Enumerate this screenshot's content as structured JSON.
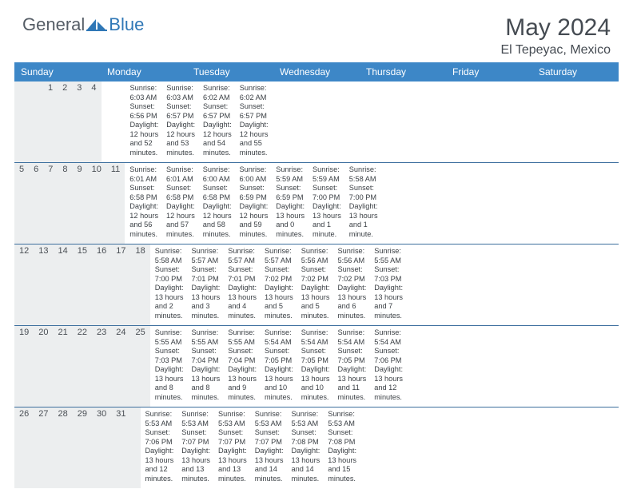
{
  "logo": {
    "part1": "General",
    "part2": "Blue"
  },
  "title": "May 2024",
  "location": "El Tepeyac, Mexico",
  "colors": {
    "header_bg": "#3d87c7",
    "header_text": "#ffffff",
    "numrow_bg": "#eceeef",
    "border": "#3d6f9e",
    "body_text": "#3a3f44",
    "title_text": "#454b52",
    "logo_gray": "#555d66",
    "logo_blue": "#2f77b6"
  },
  "day_names": [
    "Sunday",
    "Monday",
    "Tuesday",
    "Wednesday",
    "Thursday",
    "Friday",
    "Saturday"
  ],
  "weeks": [
    {
      "nums": [
        "",
        "",
        "",
        "1",
        "2",
        "3",
        "4"
      ],
      "cells": [
        "",
        "",
        "",
        "Sunrise: 6:03 AM\nSunset: 6:56 PM\nDaylight: 12 hours and 52 minutes.",
        "Sunrise: 6:03 AM\nSunset: 6:57 PM\nDaylight: 12 hours and 53 minutes.",
        "Sunrise: 6:02 AM\nSunset: 6:57 PM\nDaylight: 12 hours and 54 minutes.",
        "Sunrise: 6:02 AM\nSunset: 6:57 PM\nDaylight: 12 hours and 55 minutes."
      ]
    },
    {
      "nums": [
        "5",
        "6",
        "7",
        "8",
        "9",
        "10",
        "11"
      ],
      "cells": [
        "Sunrise: 6:01 AM\nSunset: 6:58 PM\nDaylight: 12 hours and 56 minutes.",
        "Sunrise: 6:01 AM\nSunset: 6:58 PM\nDaylight: 12 hours and 57 minutes.",
        "Sunrise: 6:00 AM\nSunset: 6:58 PM\nDaylight: 12 hours and 58 minutes.",
        "Sunrise: 6:00 AM\nSunset: 6:59 PM\nDaylight: 12 hours and 59 minutes.",
        "Sunrise: 5:59 AM\nSunset: 6:59 PM\nDaylight: 13 hours and 0 minutes.",
        "Sunrise: 5:59 AM\nSunset: 7:00 PM\nDaylight: 13 hours and 1 minute.",
        "Sunrise: 5:58 AM\nSunset: 7:00 PM\nDaylight: 13 hours and 1 minute."
      ]
    },
    {
      "nums": [
        "12",
        "13",
        "14",
        "15",
        "16",
        "17",
        "18"
      ],
      "cells": [
        "Sunrise: 5:58 AM\nSunset: 7:00 PM\nDaylight: 13 hours and 2 minutes.",
        "Sunrise: 5:57 AM\nSunset: 7:01 PM\nDaylight: 13 hours and 3 minutes.",
        "Sunrise: 5:57 AM\nSunset: 7:01 PM\nDaylight: 13 hours and 4 minutes.",
        "Sunrise: 5:57 AM\nSunset: 7:02 PM\nDaylight: 13 hours and 5 minutes.",
        "Sunrise: 5:56 AM\nSunset: 7:02 PM\nDaylight: 13 hours and 5 minutes.",
        "Sunrise: 5:56 AM\nSunset: 7:02 PM\nDaylight: 13 hours and 6 minutes.",
        "Sunrise: 5:55 AM\nSunset: 7:03 PM\nDaylight: 13 hours and 7 minutes."
      ]
    },
    {
      "nums": [
        "19",
        "20",
        "21",
        "22",
        "23",
        "24",
        "25"
      ],
      "cells": [
        "Sunrise: 5:55 AM\nSunset: 7:03 PM\nDaylight: 13 hours and 8 minutes.",
        "Sunrise: 5:55 AM\nSunset: 7:04 PM\nDaylight: 13 hours and 8 minutes.",
        "Sunrise: 5:55 AM\nSunset: 7:04 PM\nDaylight: 13 hours and 9 minutes.",
        "Sunrise: 5:54 AM\nSunset: 7:05 PM\nDaylight: 13 hours and 10 minutes.",
        "Sunrise: 5:54 AM\nSunset: 7:05 PM\nDaylight: 13 hours and 10 minutes.",
        "Sunrise: 5:54 AM\nSunset: 7:05 PM\nDaylight: 13 hours and 11 minutes.",
        "Sunrise: 5:54 AM\nSunset: 7:06 PM\nDaylight: 13 hours and 12 minutes."
      ]
    },
    {
      "nums": [
        "26",
        "27",
        "28",
        "29",
        "30",
        "31",
        ""
      ],
      "cells": [
        "Sunrise: 5:53 AM\nSunset: 7:06 PM\nDaylight: 13 hours and 12 minutes.",
        "Sunrise: 5:53 AM\nSunset: 7:07 PM\nDaylight: 13 hours and 13 minutes.",
        "Sunrise: 5:53 AM\nSunset: 7:07 PM\nDaylight: 13 hours and 13 minutes.",
        "Sunrise: 5:53 AM\nSunset: 7:07 PM\nDaylight: 13 hours and 14 minutes.",
        "Sunrise: 5:53 AM\nSunset: 7:08 PM\nDaylight: 13 hours and 14 minutes.",
        "Sunrise: 5:53 AM\nSunset: 7:08 PM\nDaylight: 13 hours and 15 minutes.",
        ""
      ]
    }
  ]
}
